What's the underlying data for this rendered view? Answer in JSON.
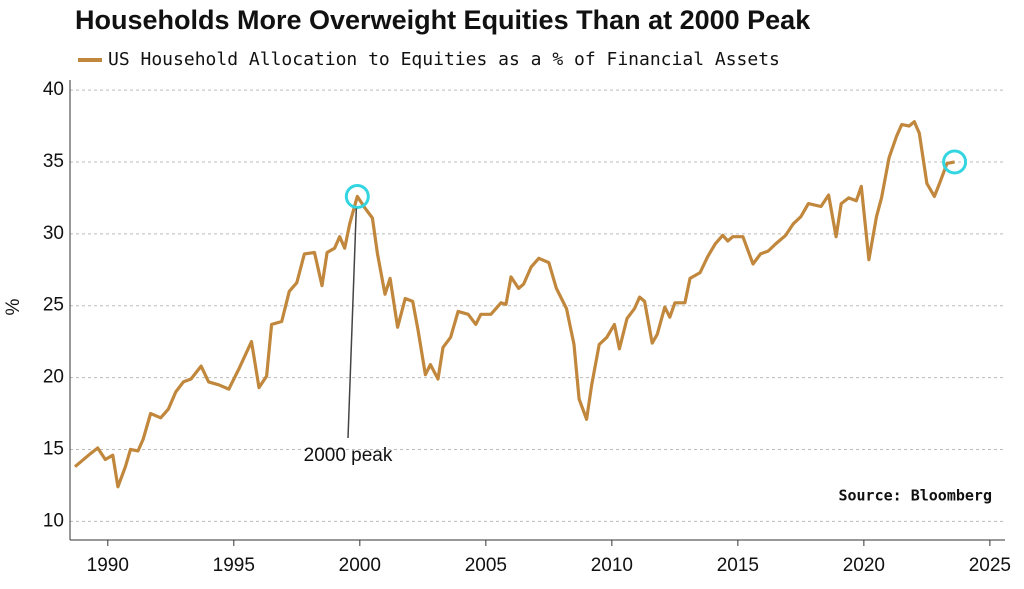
{
  "chart_data": {
    "type": "line",
    "title": "Households More Overweight Equities Than at 2000 Peak",
    "y_label": "%",
    "annotations": [
      "2000 peak",
      "Source: Bloomberg"
    ],
    "xlim": [
      1988.5,
      2025.6
    ],
    "ylim": [
      8.7,
      40.7
    ],
    "xticks": [
      1990,
      1995,
      2000,
      2005,
      2010,
      2015,
      2020,
      2025
    ],
    "yticks": [
      10,
      15,
      20,
      25,
      30,
      35,
      40
    ],
    "grid": true,
    "x": [
      1988.7,
      1989.3,
      1989.6,
      1989.9,
      1990.2,
      1990.4,
      1990.7,
      1990.9,
      1991.2,
      1991.4,
      1991.7,
      1992.1,
      1992.4,
      1992.7,
      1993.0,
      1993.3,
      1993.7,
      1994.0,
      1994.4,
      1994.8,
      1995.2,
      1995.7,
      1996.0,
      1996.3,
      1996.5,
      1996.9,
      1997.2,
      1997.5,
      1997.8,
      1998.2,
      1998.5,
      1998.7,
      1999.0,
      1999.2,
      1999.4,
      1999.6,
      1999.9,
      2000.2,
      2000.5,
      2000.7,
      2001.0,
      2001.2,
      2001.5,
      2001.8,
      2002.1,
      2002.3,
      2002.6,
      2002.8,
      2003.1,
      2003.3,
      2003.6,
      2003.9,
      2004.3,
      2004.6,
      2004.8,
      2005.2,
      2005.6,
      2005.8,
      2006.0,
      2006.3,
      2006.5,
      2006.8,
      2007.1,
      2007.5,
      2007.8,
      2008.2,
      2008.5,
      2008.7,
      2009.0,
      2009.2,
      2009.5,
      2009.8,
      2010.1,
      2010.3,
      2010.6,
      2010.9,
      2011.1,
      2011.3,
      2011.6,
      2011.8,
      2012.1,
      2012.3,
      2012.5,
      2012.9,
      2013.1,
      2013.5,
      2013.8,
      2014.1,
      2014.4,
      2014.6,
      2014.8,
      2015.2,
      2015.6,
      2015.9,
      2016.2,
      2016.5,
      2016.9,
      2017.2,
      2017.5,
      2017.8,
      2018.3,
      2018.6,
      2018.9,
      2019.1,
      2019.4,
      2019.7,
      2019.9,
      2020.2,
      2020.5,
      2020.7,
      2021.0,
      2021.3,
      2021.5,
      2021.8,
      2022.0,
      2022.2,
      2022.5,
      2022.8,
      2023.0,
      2023.3,
      2023.6
    ],
    "series": [
      {
        "name": "US Household Allocation to Equities as a % of Financial Assets",
        "color": "#c1873c",
        "values": [
          13.8,
          14.7,
          15.1,
          14.3,
          14.6,
          12.4,
          13.8,
          15.0,
          14.9,
          15.7,
          17.5,
          17.2,
          17.8,
          19.0,
          19.7,
          19.9,
          20.8,
          19.7,
          19.5,
          19.2,
          20.6,
          22.5,
          19.3,
          20.1,
          23.7,
          23.9,
          26.0,
          26.6,
          28.6,
          28.7,
          26.4,
          28.7,
          29.0,
          29.8,
          29.0,
          30.7,
          32.6,
          31.8,
          31.1,
          28.6,
          25.8,
          26.9,
          23.5,
          25.5,
          25.3,
          23.4,
          20.2,
          20.9,
          19.9,
          22.1,
          22.8,
          24.6,
          24.4,
          23.7,
          24.4,
          24.4,
          25.2,
          25.1,
          27.0,
          26.2,
          26.5,
          27.7,
          28.3,
          28.0,
          26.2,
          24.8,
          22.3,
          18.5,
          17.1,
          19.5,
          22.3,
          22.8,
          23.7,
          22.0,
          24.1,
          24.8,
          25.6,
          25.3,
          22.4,
          23.0,
          24.9,
          24.2,
          25.2,
          25.2,
          26.9,
          27.3,
          28.4,
          29.3,
          29.9,
          29.5,
          29.8,
          29.8,
          27.9,
          28.6,
          28.8,
          29.3,
          29.9,
          30.7,
          31.2,
          32.1,
          31.9,
          32.7,
          29.8,
          32.1,
          32.5,
          32.3,
          33.3,
          28.2,
          31.2,
          32.5,
          35.3,
          36.8,
          37.6,
          37.5,
          37.8,
          37.0,
          33.5,
          32.6,
          33.5,
          34.9,
          35.0
        ]
      }
    ]
  }
}
